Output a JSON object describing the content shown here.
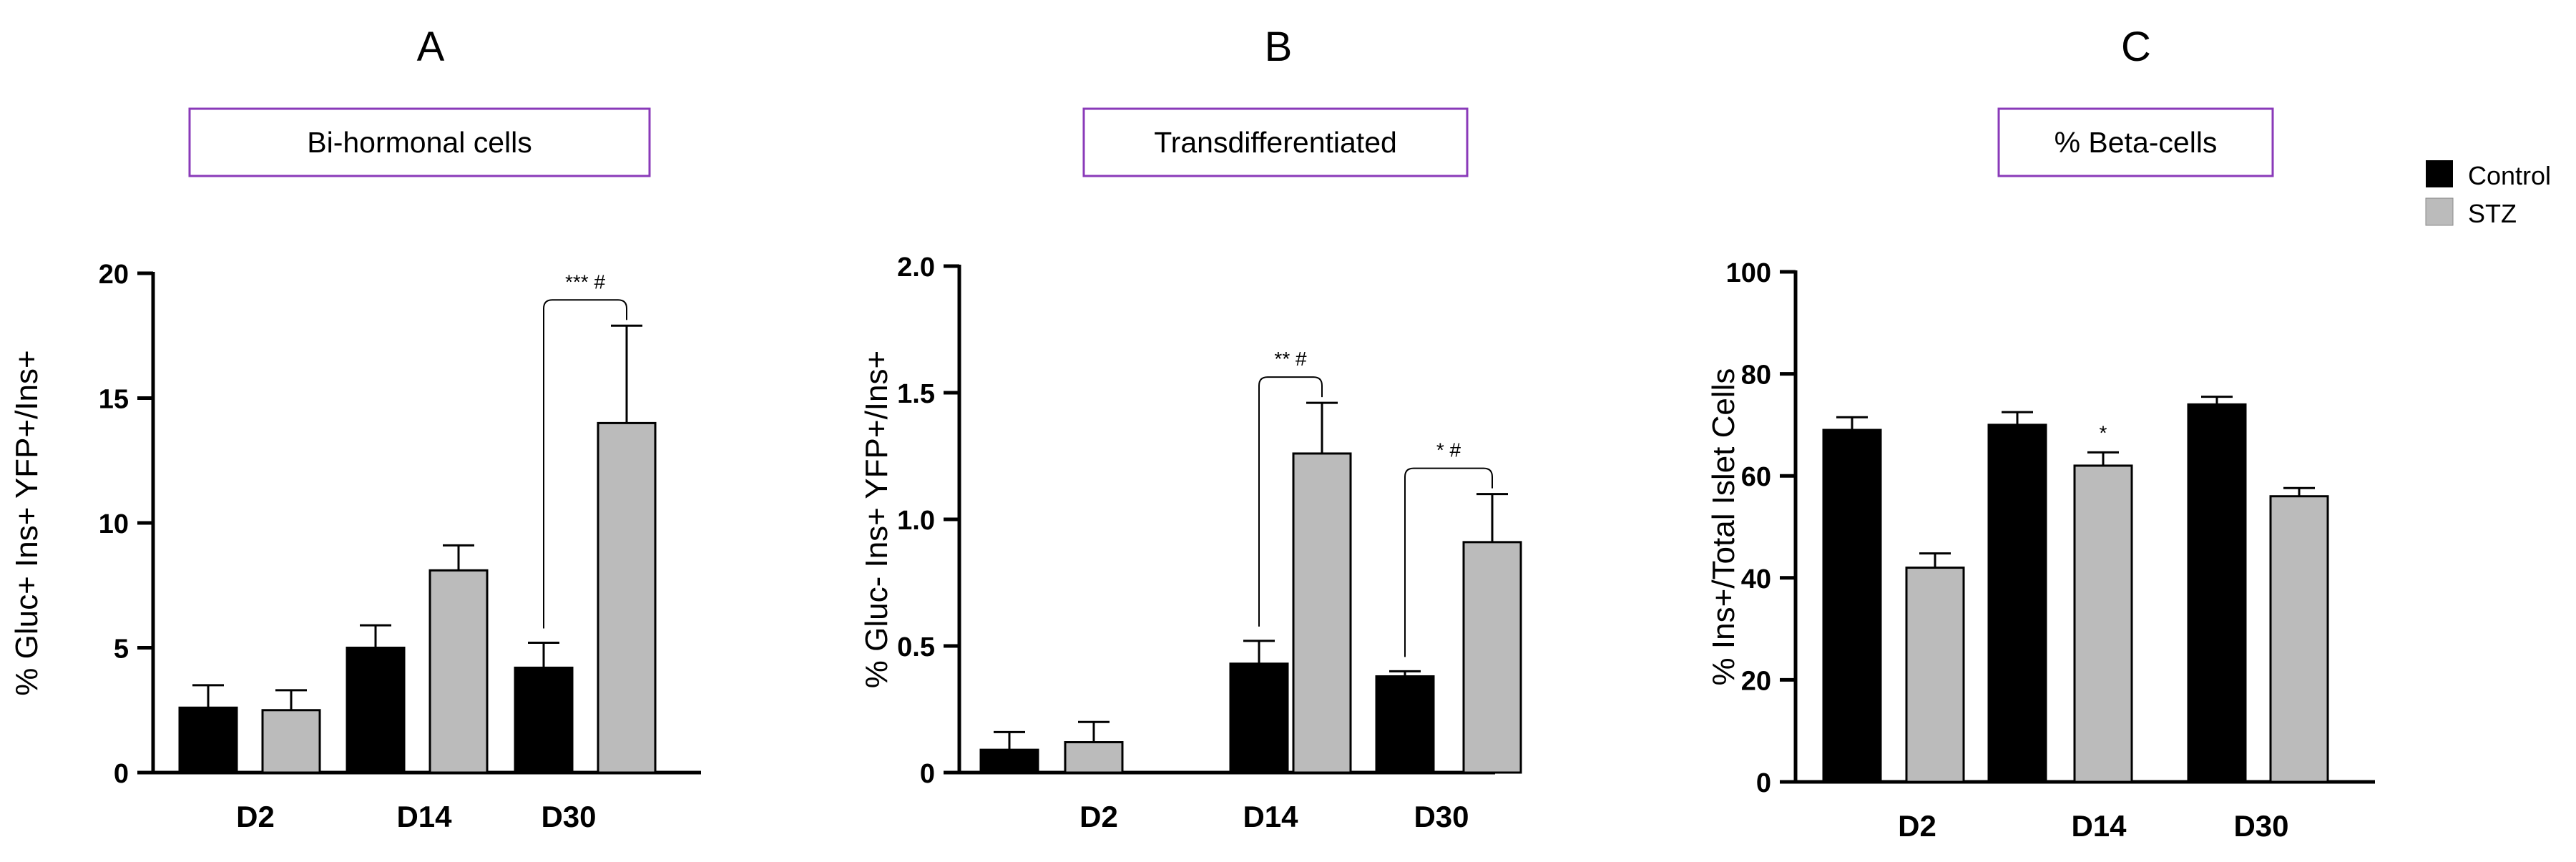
{
  "colors": {
    "control": "#000000",
    "stz": "#bbbbbb",
    "title_border": "#8a3ab9"
  },
  "legend": [
    {
      "name": "Control",
      "color": "#000000"
    },
    {
      "name": "STZ",
      "color": "#bbbbbb"
    }
  ],
  "chart_data": [
    {
      "panel": "A",
      "type": "bar",
      "title": "Bi-hormonal cells",
      "ylabel": "% Gluc+ Ins+ YFP+/Ins+",
      "categories": [
        "D2",
        "D14",
        "D30"
      ],
      "ylim": [
        0,
        20
      ],
      "yticks": [
        0,
        5,
        10,
        15,
        20
      ],
      "ytick_labels": [
        "0",
        "5",
        "10",
        "15",
        "20"
      ],
      "series": [
        {
          "name": "Control",
          "values": [
            2.6,
            5.0,
            4.2
          ],
          "errors": [
            0.9,
            0.9,
            1.0
          ]
        },
        {
          "name": "STZ",
          "values": [
            2.5,
            8.1,
            14.0
          ],
          "errors": [
            0.8,
            1.0,
            3.9
          ]
        }
      ],
      "annotations": [
        {
          "category": "D30",
          "text": "*** #"
        }
      ]
    },
    {
      "panel": "B",
      "type": "bar",
      "title": "Transdifferentiated",
      "ylabel": "% Gluc- Ins+ YFP+/Ins+",
      "categories": [
        "D2",
        "D14",
        "D30"
      ],
      "ylim": [
        0,
        2.0
      ],
      "yticks": [
        0,
        0.5,
        1.0,
        1.5,
        2.0
      ],
      "ytick_labels": [
        "0",
        "0.5",
        "1.0",
        "1.5",
        "2.0"
      ],
      "series": [
        {
          "name": "Control",
          "values": [
            0.09,
            0.43,
            0.38
          ],
          "errors": [
            0.07,
            0.09,
            0.02
          ]
        },
        {
          "name": "STZ",
          "values": [
            0.12,
            1.26,
            0.91
          ],
          "errors": [
            0.08,
            0.2,
            0.19
          ]
        }
      ],
      "annotations": [
        {
          "category": "D14",
          "text": "** #"
        },
        {
          "category": "D30",
          "text": "* #"
        }
      ]
    },
    {
      "panel": "C",
      "type": "bar",
      "title": "% Beta-cells",
      "ylabel": "% Ins+/Total Islet Cells",
      "categories": [
        "D2",
        "D14",
        "D30"
      ],
      "ylim": [
        0,
        100
      ],
      "yticks": [
        0,
        20,
        40,
        60,
        80,
        100
      ],
      "ytick_labels": [
        "0",
        "20",
        "40",
        "60",
        "80",
        "100"
      ],
      "series": [
        {
          "name": "Control",
          "values": [
            69,
            70,
            74
          ],
          "errors": [
            2.5,
            2.5,
            1.5
          ]
        },
        {
          "name": "STZ",
          "values": [
            42,
            62,
            56
          ],
          "errors": [
            2.8,
            2.6,
            1.6
          ]
        }
      ],
      "annotations": [
        {
          "category": "D14",
          "series": "STZ",
          "text": "*"
        }
      ]
    }
  ]
}
